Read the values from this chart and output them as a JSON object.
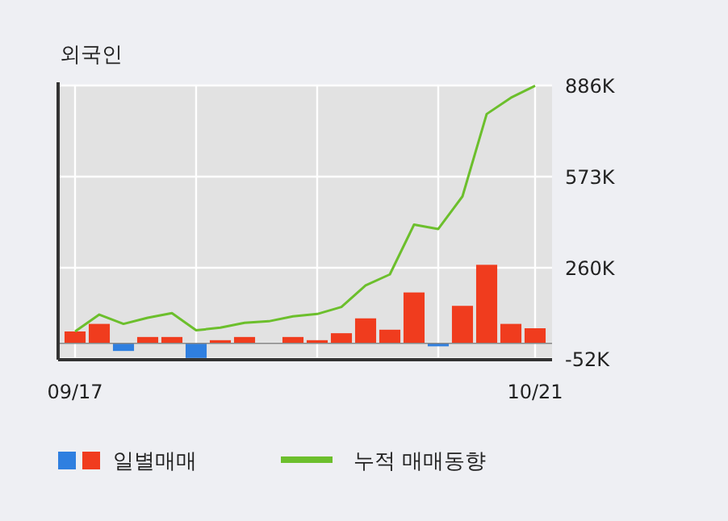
{
  "chart_data": {
    "type": "bar",
    "title": "외국인",
    "categories": [
      "09/17",
      null,
      null,
      null,
      null,
      null,
      null,
      null,
      null,
      null,
      null,
      null,
      null,
      null,
      null,
      null,
      null,
      null,
      null,
      "10/21"
    ],
    "series": [
      {
        "name": "일별매매",
        "colors": [
          "#f03c1e",
          "#f03c1e",
          "#2f7fe0",
          "#f03c1e",
          "#f03c1e",
          "#2f7fe0",
          "#f03c1e",
          "#f03c1e",
          "#f03c1e",
          "#f03c1e",
          "#f03c1e",
          "#f03c1e",
          "#f03c1e",
          "#f03c1e",
          "#f03c1e",
          "#2f7fe0",
          "#f03c1e",
          "#f03c1e",
          "#f03c1e",
          "#f03c1e"
        ],
        "values": [
          41000,
          67000,
          -26000,
          22000,
          22000,
          -50000,
          11000,
          22000,
          0,
          22000,
          11000,
          35000,
          86000,
          47000,
          175000,
          -10000,
          129000,
          270000,
          67000,
          52000
        ]
      },
      {
        "name": "누적 매매동향",
        "type": "line",
        "color": "#6cbf2c",
        "values": [
          41000,
          99000,
          67000,
          88000,
          104000,
          45000,
          54000,
          71000,
          76000,
          93000,
          101000,
          125000,
          199000,
          237000,
          408000,
          393000,
          505000,
          788000,
          844000,
          885000
        ]
      }
    ],
    "ylim": [
      -56000,
      886000
    ],
    "yticks": [
      {
        "value": -52000,
        "label": "-52K"
      },
      {
        "value": 260000,
        "label": "260K"
      },
      {
        "value": 573000,
        "label": "573K"
      },
      {
        "value": 886000,
        "label": "886K"
      }
    ],
    "grid": true,
    "legend": "bottom",
    "marker": "none"
  }
}
